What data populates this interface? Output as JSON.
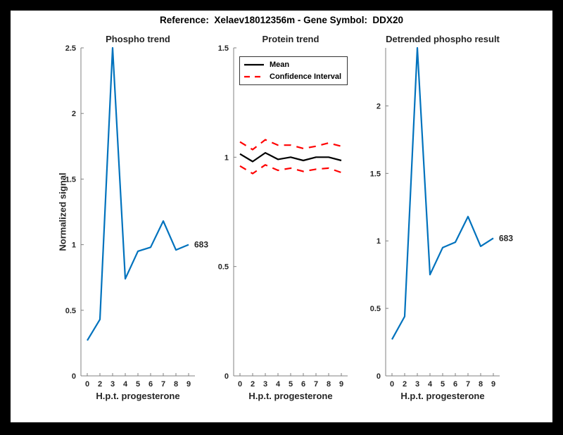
{
  "figure": {
    "title": "Reference:  Xelaev18012356m - Gene Symbol:  DDX20",
    "background": "#ffffff",
    "frame_color": "#000000",
    "axis_color": "#808080",
    "tick_text_color": "#262626"
  },
  "chart_data": [
    {
      "type": "line",
      "title": "Phospho trend",
      "xlabel": "H.p.t. progesterone",
      "ylabel": "Normalized signal",
      "x_tick_labels": [
        "0",
        "2",
        "3",
        "4",
        "5",
        "6",
        "7",
        "8",
        "9"
      ],
      "ylim": [
        0,
        2.5
      ],
      "yticks": [
        0,
        0.5,
        1,
        1.5,
        2,
        2.5
      ],
      "grid": false,
      "legend_position": "none",
      "series": [
        {
          "name": "phospho-signal",
          "color": "#0072BD",
          "style": "solid",
          "values": [
            0.27,
            0.43,
            2.5,
            0.74,
            0.95,
            0.98,
            1.18,
            0.96,
            1.0
          ]
        }
      ],
      "annotation": {
        "text": "683",
        "index": 8
      }
    },
    {
      "type": "line",
      "title": "Protein trend",
      "xlabel": "H.p.t. progesterone",
      "ylabel": "",
      "x_tick_labels": [
        "0",
        "2",
        "3",
        "4",
        "5",
        "6",
        "7",
        "8",
        "9"
      ],
      "ylim": [
        0,
        1.5
      ],
      "yticks": [
        0,
        0.5,
        1,
        1.5
      ],
      "grid": false,
      "legend_position": "northwest",
      "legend": {
        "entries": [
          {
            "label": "Mean",
            "color": "#000000",
            "style": "solid"
          },
          {
            "label": "Confidence Interval",
            "color": "#FF0000",
            "style": "dashed"
          }
        ]
      },
      "series": [
        {
          "name": "protein-mean",
          "color": "#000000",
          "style": "solid",
          "values": [
            1.015,
            0.98,
            1.02,
            0.99,
            1.0,
            0.985,
            1.0,
            1.0,
            0.985
          ]
        },
        {
          "name": "ci-upper",
          "color": "#FF0000",
          "style": "dashed",
          "values": [
            1.07,
            1.035,
            1.08,
            1.055,
            1.055,
            1.04,
            1.05,
            1.065,
            1.05
          ]
        },
        {
          "name": "ci-lower",
          "color": "#FF0000",
          "style": "dashed",
          "values": [
            0.96,
            0.925,
            0.965,
            0.94,
            0.95,
            0.935,
            0.945,
            0.95,
            0.93
          ]
        }
      ]
    },
    {
      "type": "line",
      "title": "Detrended phospho result",
      "xlabel": "H.p.t. progesterone",
      "ylabel": "",
      "x_tick_labels": [
        "0",
        "2",
        "3",
        "4",
        "5",
        "6",
        "7",
        "8",
        "9"
      ],
      "ylim": [
        0,
        2.43
      ],
      "yticks": [
        0,
        0.5,
        1,
        1.5,
        2
      ],
      "grid": false,
      "legend_position": "none",
      "series": [
        {
          "name": "detrended-phospho",
          "color": "#0072BD",
          "style": "solid",
          "values": [
            0.27,
            0.44,
            2.43,
            0.75,
            0.95,
            0.99,
            1.18,
            0.96,
            1.02
          ]
        }
      ],
      "annotation": {
        "text": "683",
        "index": 8
      }
    }
  ]
}
